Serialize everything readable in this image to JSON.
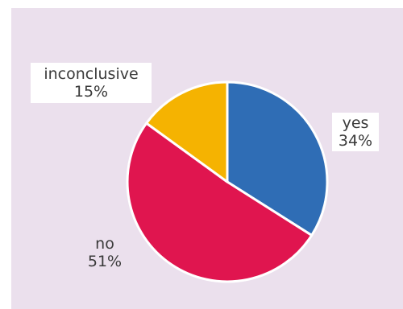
{
  "chart_data": {
    "type": "pie",
    "slices": [
      {
        "label": "yes",
        "value": 34,
        "value_label": "34%",
        "color": "#2f6db5"
      },
      {
        "label": "no",
        "value": 51,
        "value_label": "51%",
        "color": "#e0154f"
      },
      {
        "label": "inconclusive",
        "value": 15,
        "value_label": "15%",
        "color": "#f5b301"
      }
    ],
    "start_angle_deg": 0,
    "direction": "clockwise",
    "background_color": "#ebe0ed"
  }
}
